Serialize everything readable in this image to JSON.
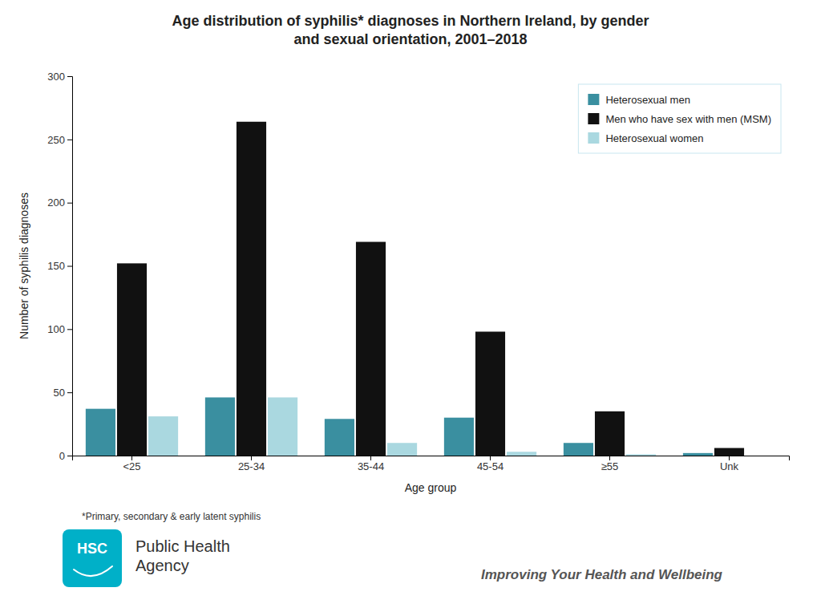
{
  "chart_data": {
    "type": "bar",
    "title": "Age distribution of syphilis* diagnoses in Northern Ireland, by gender\nand sexual orientation, 2001–2018",
    "x_label": "Age group",
    "y_label": "Number of syphilis diagnoses",
    "categories": [
      "<25",
      "25-34",
      "35-44",
      "45-54",
      "≥55",
      "Unk"
    ],
    "series": [
      {
        "name": "Heterosexual men",
        "color": "#3a8fa0",
        "values": [
          37,
          46,
          29,
          30,
          10,
          2
        ]
      },
      {
        "name": "Men who have sex with men (MSM)",
        "color": "#111111",
        "values": [
          152,
          264,
          169,
          98,
          35,
          6
        ]
      },
      {
        "name": "Heterosexual women",
        "color": "#aad8e0",
        "values": [
          31,
          46,
          10,
          3,
          1,
          0
        ]
      }
    ],
    "ylim": [
      0,
      300
    ],
    "yticks": [
      0,
      50,
      100,
      150,
      200,
      250,
      300
    ],
    "grid": false,
    "legend": "upper right",
    "annotations": [
      "*Primary, secondary & early latent syphilis",
      "HSC",
      "Public Health\nAgency",
      "Improving Your Health and Wellbeing"
    ]
  }
}
